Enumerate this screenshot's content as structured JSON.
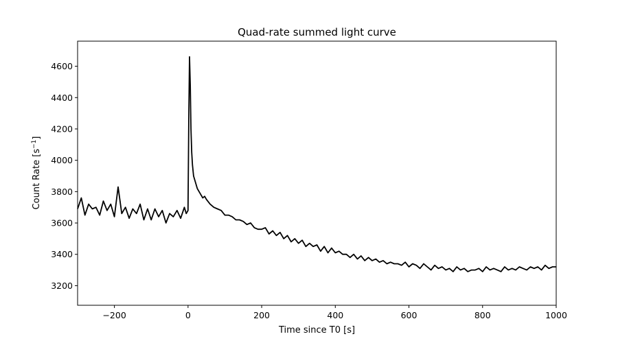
{
  "chart_data": {
    "type": "line",
    "title": "Quad-rate summed light curve",
    "xlabel": "Time since T0 [s]",
    "ylabel_main": "Count Rate [s",
    "ylabel_sup": "−1",
    "ylabel_end": "]",
    "xlim": [
      -300,
      1000
    ],
    "ylim": [
      3075,
      4760
    ],
    "grid": false,
    "xticks": [
      -200,
      0,
      200,
      400,
      600,
      800,
      1000
    ],
    "xtick_labels": [
      "−200",
      "0",
      "200",
      "400",
      "600",
      "800",
      "1000"
    ],
    "yticks": [
      3200,
      3400,
      3600,
      3800,
      4000,
      4200,
      4400,
      4600
    ],
    "ytick_labels": [
      "3200",
      "3400",
      "3600",
      "3800",
      "4000",
      "4200",
      "4400",
      "4600"
    ],
    "series": [
      {
        "color": "#000000",
        "x": [
          -300,
          -290,
          -280,
          -270,
          -260,
          -250,
          -240,
          -230,
          -220,
          -210,
          -200,
          -190,
          -180,
          -170,
          -160,
          -150,
          -140,
          -130,
          -120,
          -110,
          -100,
          -90,
          -80,
          -70,
          -60,
          -50,
          -40,
          -30,
          -20,
          -10,
          -5,
          0,
          2,
          4,
          6,
          8,
          10,
          12,
          15,
          20,
          25,
          30,
          35,
          40,
          45,
          50,
          60,
          70,
          80,
          90,
          100,
          110,
          120,
          130,
          140,
          150,
          160,
          170,
          180,
          190,
          200,
          210,
          220,
          230,
          240,
          250,
          260,
          270,
          280,
          290,
          300,
          310,
          320,
          330,
          340,
          350,
          360,
          370,
          380,
          390,
          400,
          410,
          420,
          430,
          440,
          450,
          460,
          470,
          480,
          490,
          500,
          510,
          520,
          530,
          540,
          550,
          560,
          570,
          580,
          590,
          600,
          610,
          620,
          630,
          640,
          650,
          660,
          670,
          680,
          690,
          700,
          710,
          720,
          730,
          740,
          750,
          760,
          770,
          780,
          790,
          800,
          810,
          820,
          830,
          840,
          850,
          860,
          870,
          880,
          890,
          900,
          910,
          920,
          930,
          940,
          950,
          960,
          970,
          980,
          990,
          1000
        ],
        "y": [
          3690,
          3760,
          3650,
          3720,
          3690,
          3700,
          3650,
          3740,
          3680,
          3720,
          3640,
          3830,
          3660,
          3700,
          3630,
          3690,
          3660,
          3720,
          3620,
          3690,
          3620,
          3690,
          3640,
          3680,
          3600,
          3660,
          3640,
          3680,
          3630,
          3700,
          3660,
          3680,
          4250,
          4660,
          4480,
          4200,
          4050,
          3970,
          3900,
          3860,
          3820,
          3800,
          3780,
          3760,
          3770,
          3750,
          3720,
          3700,
          3690,
          3680,
          3650,
          3650,
          3640,
          3620,
          3620,
          3610,
          3590,
          3600,
          3570,
          3560,
          3560,
          3570,
          3530,
          3550,
          3520,
          3540,
          3500,
          3520,
          3480,
          3500,
          3470,
          3490,
          3450,
          3470,
          3450,
          3460,
          3420,
          3450,
          3410,
          3440,
          3410,
          3420,
          3400,
          3400,
          3380,
          3400,
          3370,
          3390,
          3360,
          3380,
          3360,
          3370,
          3350,
          3360,
          3340,
          3350,
          3340,
          3340,
          3330,
          3350,
          3320,
          3340,
          3330,
          3310,
          3340,
          3320,
          3300,
          3330,
          3310,
          3320,
          3300,
          3310,
          3290,
          3320,
          3300,
          3310,
          3290,
          3300,
          3300,
          3310,
          3290,
          3320,
          3300,
          3310,
          3300,
          3290,
          3320,
          3300,
          3310,
          3300,
          3320,
          3310,
          3300,
          3320,
          3310,
          3320,
          3300,
          3330,
          3310,
          3320,
          3320
        ]
      }
    ]
  }
}
